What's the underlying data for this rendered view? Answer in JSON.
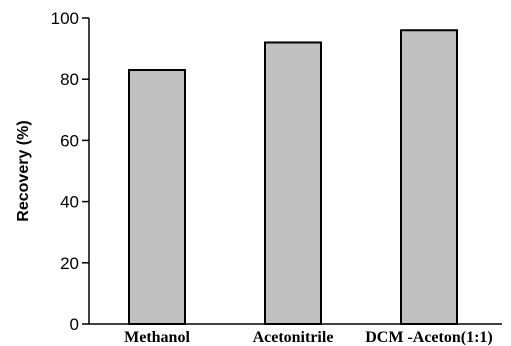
{
  "chart_data": {
    "type": "bar",
    "title": "",
    "xlabel": "",
    "ylabel": "Recovery (%)",
    "categories": [
      "Methanol",
      "Acetonitrile",
      "DCM -Aceton(1:1)"
    ],
    "values": [
      83,
      92,
      96
    ],
    "ylim": [
      0,
      100
    ],
    "yticks": [
      0,
      20,
      40,
      60,
      80,
      100
    ],
    "grid": false,
    "bar_color": "#c0c0c0",
    "bar_edge_color": "#000000"
  }
}
